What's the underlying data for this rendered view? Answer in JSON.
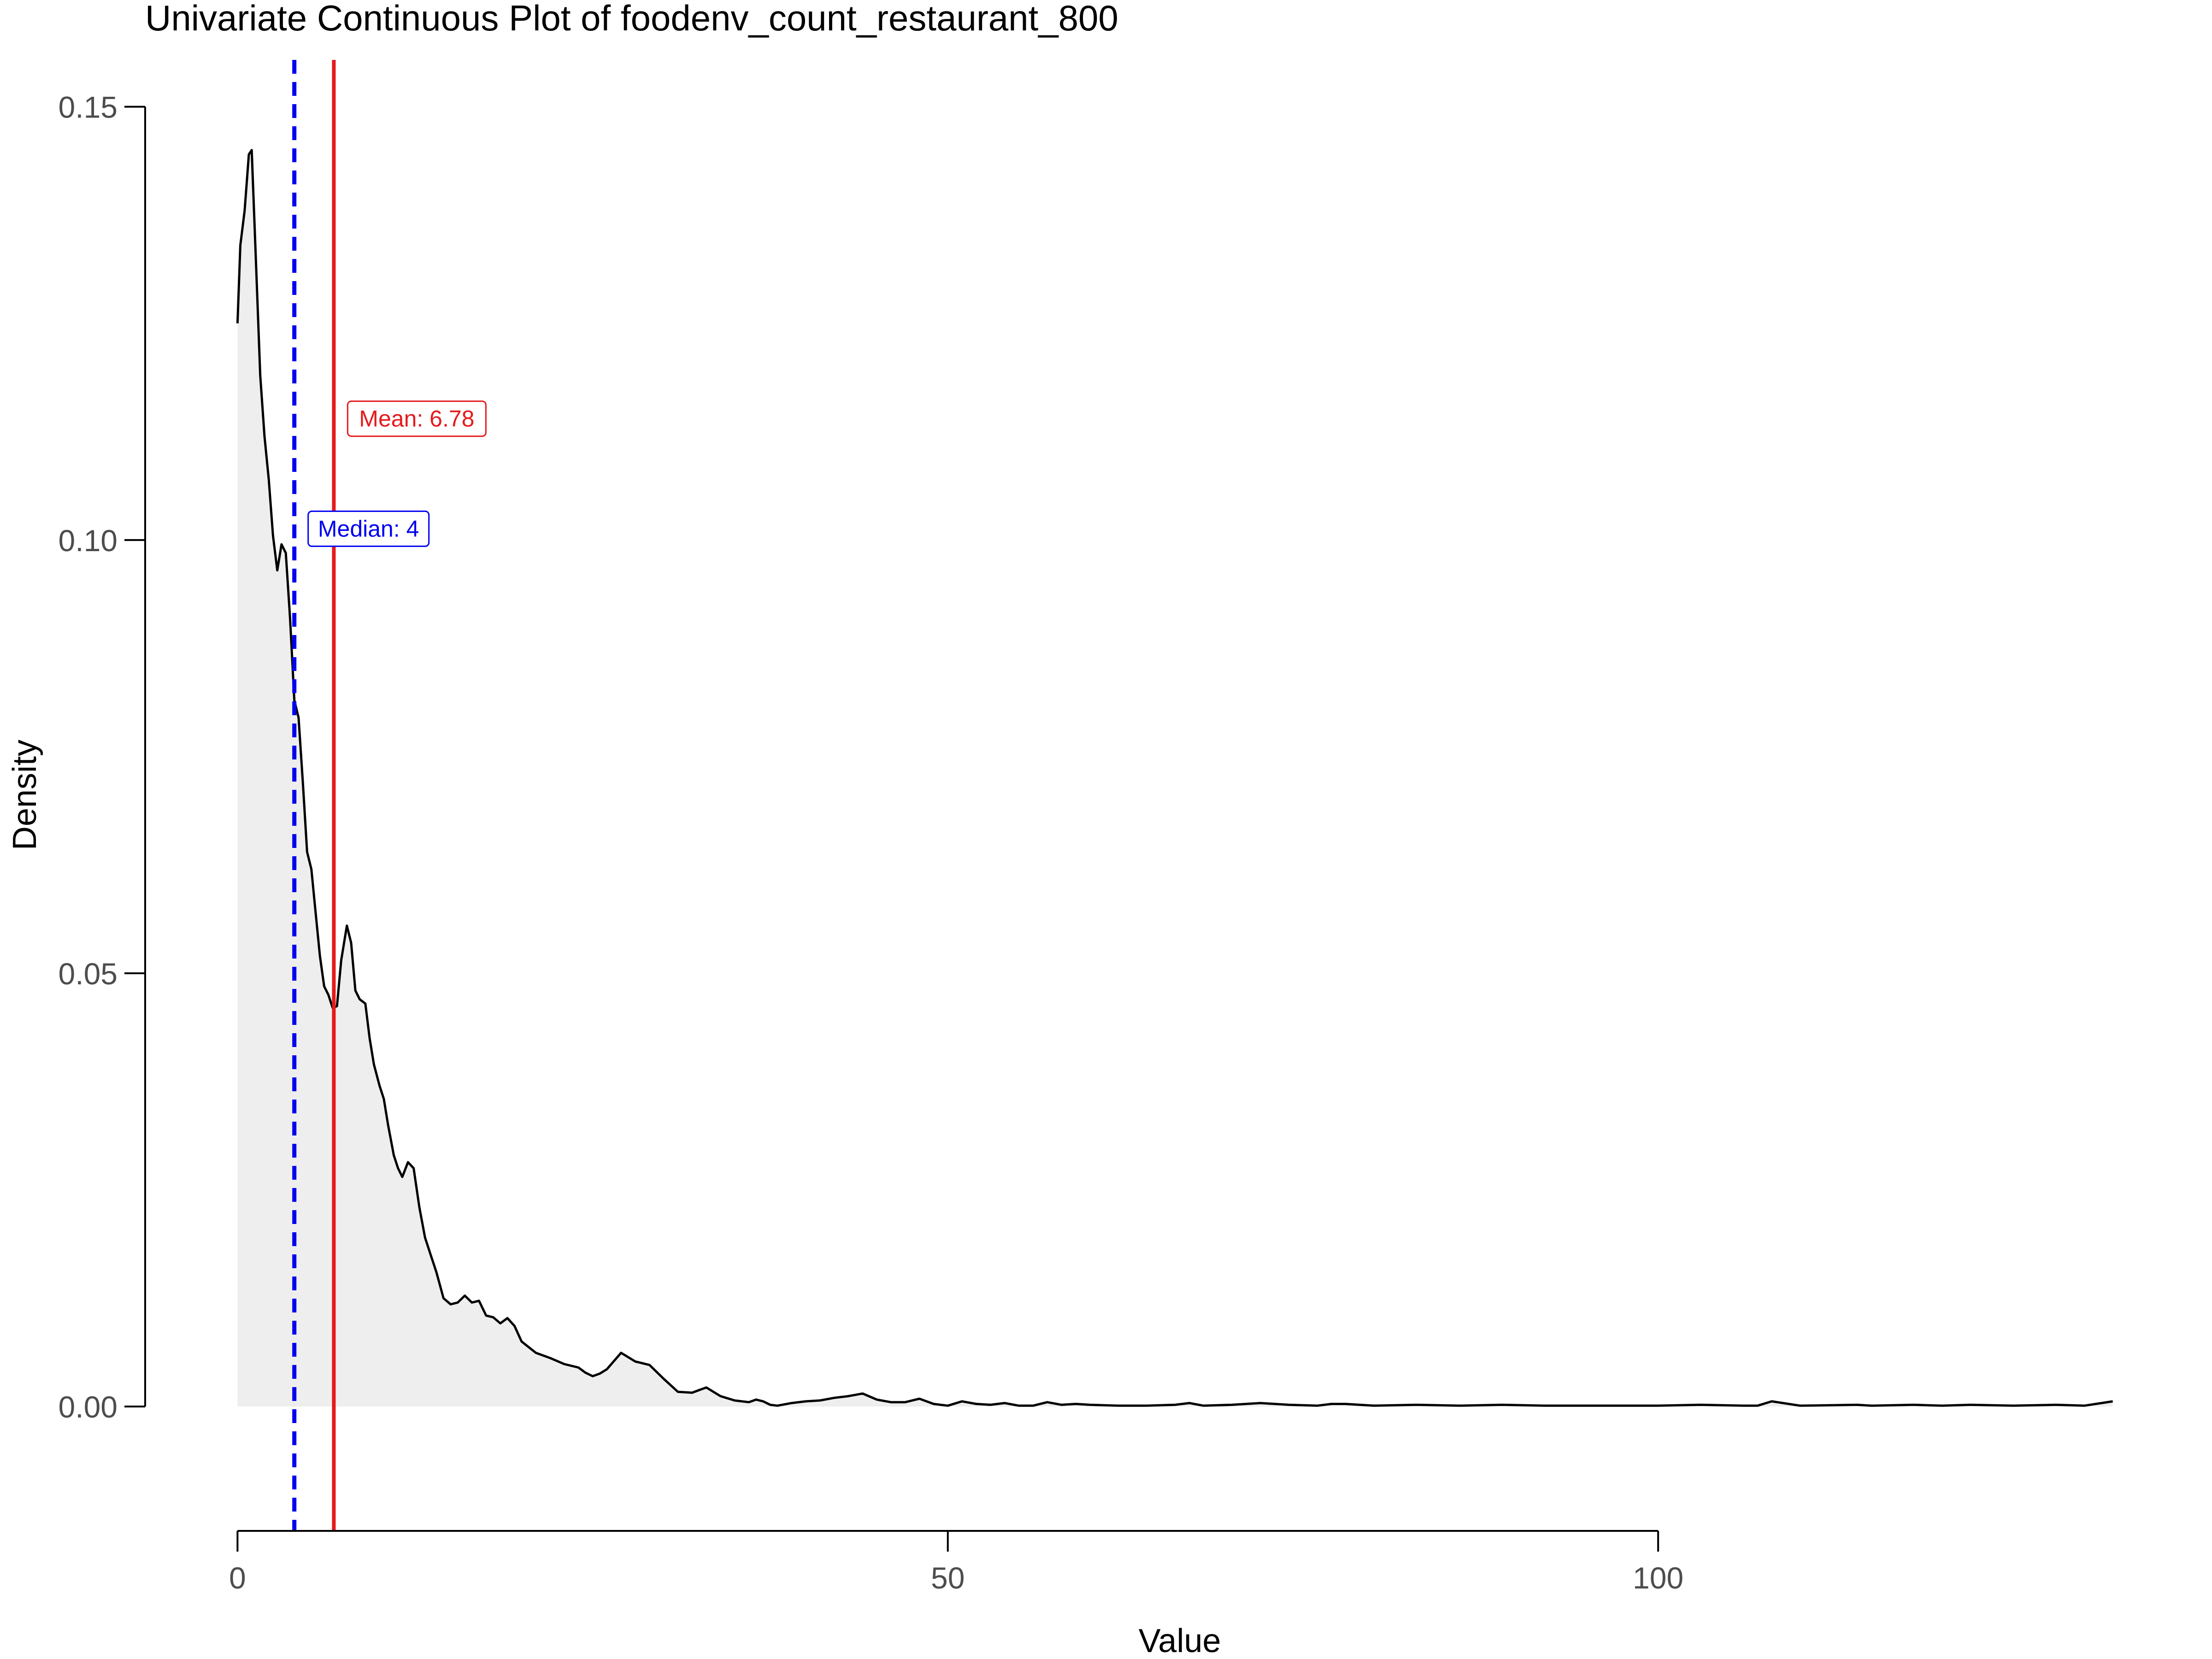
{
  "chart_data": {
    "type": "area",
    "title": "Univariate Continuous Plot of foodenv_count_restaurant_800",
    "xlabel": "Value",
    "ylabel": "Density",
    "xlim": [
      -6.5,
      132.5
    ],
    "ylim": [
      -0.0068,
      0.1553
    ],
    "x_axis_range": [
      0,
      100
    ],
    "y_axis_range": [
      0,
      0.15
    ],
    "x_ticks": [
      0,
      50,
      100
    ],
    "x_tick_labels": [
      "0",
      "50",
      "100"
    ],
    "y_ticks": [
      0,
      0.05,
      0.1,
      0.15
    ],
    "y_tick_labels": [
      "0.00",
      "0.05",
      "0.10",
      "0.15"
    ],
    "grid": false,
    "colors": {
      "fill": "#eeeeee",
      "line": "#000000",
      "mean": "#e41a1c",
      "median": "#0000ee"
    },
    "reference_lines": [
      {
        "name": "mean",
        "value": 6.78,
        "label": "Mean: 6.78",
        "color": "#e41a1c",
        "style": "solid",
        "label_y": 0.114
      },
      {
        "name": "median",
        "value": 4,
        "label": "Median: 4",
        "color": "#0000ee",
        "style": "dashed",
        "label_y": 0.1013
      }
    ],
    "density": {
      "x": [
        0,
        0.2,
        0.5,
        0.8,
        1.0,
        1.3,
        1.6,
        1.9,
        2.2,
        2.5,
        2.8,
        3.1,
        3.4,
        3.7,
        4.0,
        4.3,
        4.6,
        4.9,
        5.2,
        5.5,
        5.8,
        6.1,
        6.4,
        6.7,
        7.0,
        7.3,
        7.7,
        8.0,
        8.3,
        8.6,
        9.0,
        9.3,
        9.6,
        10.0,
        10.3,
        10.6,
        11.0,
        11.3,
        11.6,
        12.0,
        12.4,
        12.8,
        13.2,
        13.6,
        14.0,
        14.5,
        15.0,
        15.5,
        16.0,
        16.5,
        17.0,
        17.5,
        18.0,
        18.5,
        19.0,
        19.5,
        20.0,
        21.0,
        22.0,
        23.0,
        24.0,
        24.5,
        25.0,
        25.5,
        26.0,
        27.0,
        28.0,
        29.0,
        30.0,
        31.0,
        32.0,
        32.5,
        33.0,
        33.5,
        34.0,
        35.0,
        36.0,
        36.5,
        37.0,
        37.5,
        38.0,
        39.0,
        40.0,
        41.0,
        42.0,
        43.0,
        44.0,
        45.0,
        46.0,
        47.0,
        48.0,
        49.0,
        50.0,
        51.0,
        52.0,
        53.0,
        54.0,
        55.0,
        56.0,
        57.0,
        58.0,
        59.0,
        60.0,
        62.0,
        64.0,
        66.0,
        67.0,
        68.0,
        70.0,
        72.0,
        74.0,
        76.0,
        77.0,
        78.0,
        80.0,
        83.0,
        86.0,
        89.0,
        92.0,
        95.0,
        98.0,
        100.0,
        103.0,
        106.0,
        107.0,
        108.0,
        110.0,
        114.0,
        115.0,
        118.0,
        120.0,
        122.0,
        125.0,
        128.0,
        130.0,
        132.0
      ],
      "y": [
        0.125,
        0.134,
        0.138,
        0.1445,
        0.145,
        0.132,
        0.119,
        0.112,
        0.107,
        0.1005,
        0.0965,
        0.0995,
        0.0985,
        0.091,
        0.0815,
        0.0795,
        0.072,
        0.064,
        0.062,
        0.057,
        0.052,
        0.0485,
        0.0475,
        0.046,
        0.0462,
        0.0515,
        0.0555,
        0.0535,
        0.048,
        0.047,
        0.0465,
        0.0425,
        0.0395,
        0.037,
        0.0355,
        0.0325,
        0.029,
        0.0275,
        0.0265,
        0.0282,
        0.0275,
        0.023,
        0.0195,
        0.0175,
        0.0155,
        0.0125,
        0.0118,
        0.012,
        0.0128,
        0.012,
        0.0122,
        0.0105,
        0.0103,
        0.0096,
        0.0102,
        0.0093,
        0.0075,
        0.0062,
        0.0056,
        0.0049,
        0.0045,
        0.0039,
        0.0035,
        0.0038,
        0.0043,
        0.0062,
        0.0052,
        0.0048,
        0.0032,
        0.0017,
        0.0016,
        0.0019,
        0.0022,
        0.0017,
        0.0012,
        0.0007,
        0.0005,
        0.0008,
        0.0006,
        0.0002,
        0.0001,
        0.0004,
        0.0006,
        0.0007,
        0.001,
        0.0012,
        0.0015,
        0.0008,
        0.0005,
        0.0005,
        0.0009,
        0.0003,
        0.0001,
        0.0006,
        0.0003,
        0.0002,
        0.0004,
        0.0001,
        0.0001,
        0.0005,
        0.0002,
        0.0003,
        0.0002,
        0.0001,
        0.0001,
        0.0002,
        0.0004,
        0.0001,
        0.0002,
        0.0004,
        0.0002,
        0.0001,
        0.0003,
        0.0003,
        0.0001,
        0.0002,
        0.0001,
        0.0002,
        0.0001,
        0.0001,
        0.0001,
        0.0001,
        0.0002,
        0.0001,
        0.0001,
        0.0006,
        0.0001,
        0.0002,
        0.0001,
        0.0002,
        0.0001,
        0.0002,
        0.0001,
        0.0002,
        0.0001,
        0.0006
      ]
    }
  }
}
